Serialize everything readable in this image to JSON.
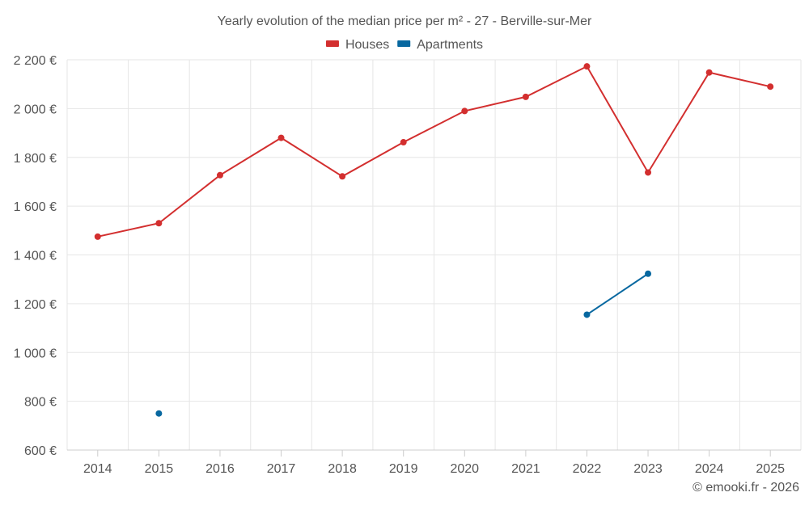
{
  "chart_data": {
    "type": "line",
    "title": "Yearly evolution of the median price per m² - 27 - Berville-sur-Mer",
    "categories": [
      "2014",
      "2015",
      "2016",
      "2017",
      "2018",
      "2019",
      "2020",
      "2021",
      "2022",
      "2023",
      "2024",
      "2025"
    ],
    "series": [
      {
        "name": "Houses",
        "color": "#d32f2f",
        "values": [
          1475,
          1530,
          1727,
          1880,
          1722,
          1862,
          1990,
          2048,
          2173,
          1738,
          2148,
          2090
        ]
      },
      {
        "name": "Apartments",
        "color": "#0868a0",
        "values": [
          null,
          750,
          null,
          null,
          null,
          null,
          null,
          null,
          1155,
          1323,
          null,
          null
        ]
      }
    ],
    "ylim": [
      600,
      2200
    ],
    "yticks": [
      600,
      800,
      1000,
      1200,
      1400,
      1600,
      1800,
      2000,
      2200
    ],
    "ytick_labels": [
      "600 €",
      "800 €",
      "1 000 €",
      "1 200 €",
      "1 400 €",
      "1 600 €",
      "1 800 €",
      "2 000 €",
      "2 200 €"
    ],
    "grid": true,
    "legend_position": "top-center"
  },
  "credit": "© emooki.fr - 2026"
}
